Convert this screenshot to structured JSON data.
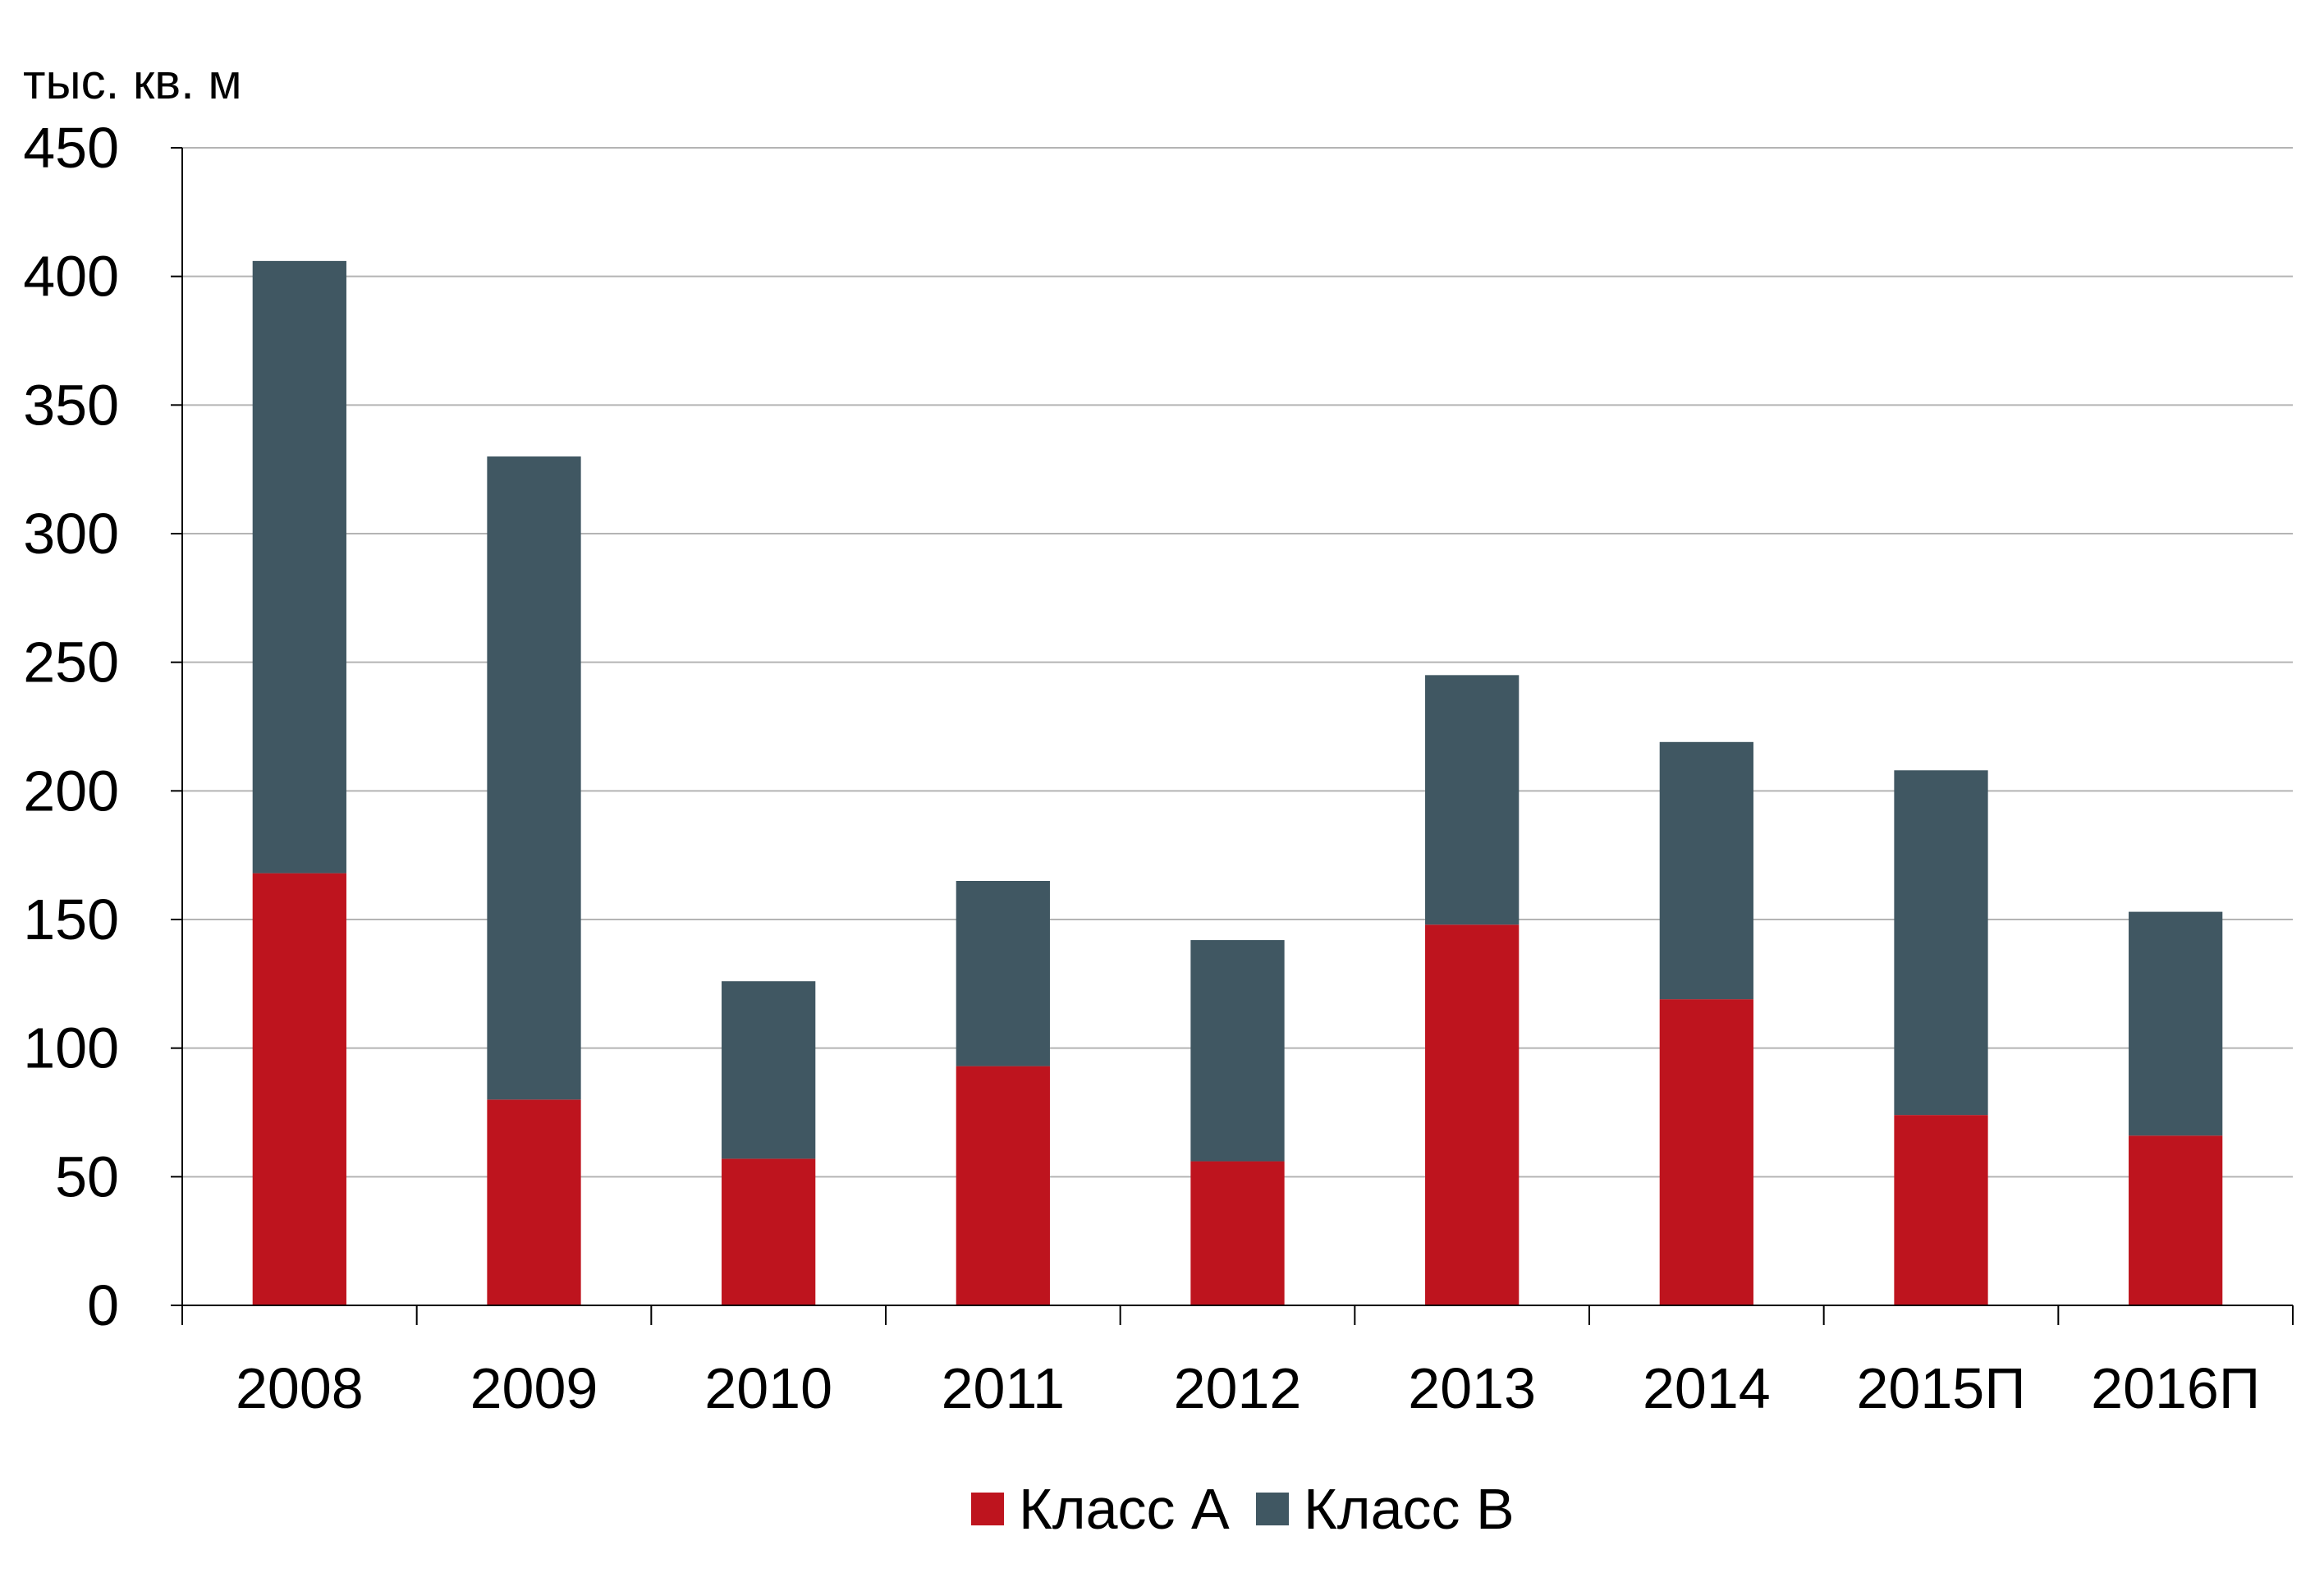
{
  "chart_data": {
    "type": "bar",
    "stacked": true,
    "unit_label": "тыс. кв. м",
    "categories": [
      "2008",
      "2009",
      "2010",
      "2011",
      "2012",
      "2013",
      "2014",
      "2015П",
      "2016П"
    ],
    "series": [
      {
        "name": "Класс А",
        "color": "#be141e",
        "values": [
          168,
          80,
          57,
          93,
          56,
          148,
          119,
          74,
          66
        ]
      },
      {
        "name": "Класс B",
        "color": "#405762",
        "values": [
          238,
          250,
          69,
          72,
          86,
          97,
          100,
          134,
          87
        ]
      }
    ],
    "yticks": [
      "0",
      "50",
      "100",
      "150",
      "200",
      "250",
      "300",
      "350",
      "400",
      "450"
    ],
    "ylim": [
      0,
      450
    ],
    "grid": true,
    "legend_position": "bottom"
  }
}
